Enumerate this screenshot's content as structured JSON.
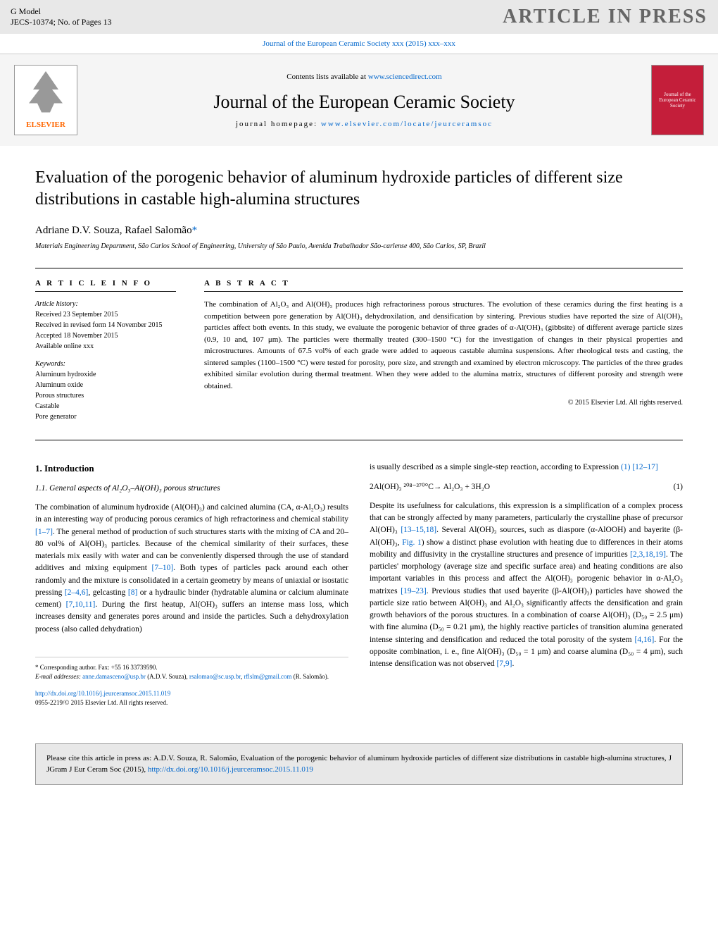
{
  "header": {
    "gmodel": "G Model",
    "jecs": "JECS-10374;   No. of Pages 13",
    "article_in_press": "ARTICLE IN PRESS"
  },
  "journal_ref": "Journal of the European Ceramic Society xxx (2015) xxx–xxx",
  "banner": {
    "elsevier": "ELSEVIER",
    "contents": "Contents lists available at ",
    "sciencedirect": "www.sciencedirect.com",
    "journal_title": "Journal of the European Ceramic Society",
    "homepage_label": "journal homepage: ",
    "homepage_url": "www.elsevier.com/locate/jeurceramsoc",
    "cover_text": "Journal of the European Ceramic Society"
  },
  "article": {
    "title": "Evaluation of the porogenic behavior of aluminum hydroxide particles of different size distributions in castable high-alumina structures",
    "author1": "Adriane D.V. Souza",
    "author2": "Rafael Salomão",
    "asterisk": "*",
    "affiliation": "Materials Engineering Department, São Carlos School of Engineering, University of São Paulo, Avenida Trabalhador São-carlense 400, São Carlos, SP, Brazil"
  },
  "info": {
    "header": "A R T I C L E   I N F O",
    "history_label": "Article history:",
    "received": "Received 23 September 2015",
    "revised": "Received in revised form 14 November 2015",
    "accepted": "Accepted 18 November 2015",
    "online": "Available online xxx",
    "keywords_label": "Keywords:",
    "kw1": "Aluminum hydroxide",
    "kw2": "Aluminum oxide",
    "kw3": "Porous structures",
    "kw4": "Castable",
    "kw5": "Pore generator"
  },
  "abstract": {
    "header": "A B S T R A C T",
    "text": "The combination of Al₂O₃ and Al(OH)₃ produces high refractoriness porous structures. The evolution of these ceramics during the first heating is a competition between pore generation by Al(OH)₃ dehydroxilation, and densification by sintering. Previous studies have reported the size of Al(OH)₃ particles affect both events. In this study, we evaluate the porogenic behavior of three grades of α-Al(OH)₃ (gibbsite) of different average particle sizes (0.9, 10 and, 107 μm). The particles were thermally treated (300–1500 °C) for the investigation of changes in their physical properties and microstructures. Amounts of 67.5 vol% of each grade were added to aqueous castable alumina suspensions. After rheological tests and casting, the sintered samples (1100–1500 °C) were tested for porosity, pore size, and strength and examined by electron microscopy. The particles of the three grades exhibited similar evolution during thermal treatment. When they were added to the alumina matrix, structures of different porosity and strength were obtained.",
    "copyright": "© 2015 Elsevier Ltd. All rights reserved."
  },
  "body": {
    "section1": "1.  Introduction",
    "subsection11": "1.1.  General aspects of Al₂O₃–Al(OH)₃ porous structures",
    "para1a": "The combination of aluminum hydroxide (Al(OH)₃) and calcined alumina (CA, α-Al₂O₃) results in an interesting way of producing porous ceramics of high refractoriness and chemical stability ",
    "ref1": "[1–7]",
    "para1b": ". The general method of production of such structures starts with the mixing of CA and 20–80 vol% of Al(OH)₃ particles. Because of the chemical similarity of their surfaces, these materials mix easily with water and can be conveniently dispersed through the use of standard additives and mixing equipment ",
    "ref2": "[7–10]",
    "para1c": ". Both types of particles pack around each other randomly and the mixture is consolidated in a certain geometry by means of uniaxial or isostatic pressing ",
    "ref3": "[2–4,6]",
    "para1d": ", gelcasting ",
    "ref4": "[8]",
    "para1e": " or a hydraulic binder (hydratable alumina or calcium aluminate cement) ",
    "ref5": "[7,10,11]",
    "para1f": ". During the first heatup, Al(OH)₃ suffers an intense mass loss, which increases density and generates pores around and inside the particles. Such a dehydroxylation process (also called dehydration)",
    "para2a": "is usually described as a simple single-step reaction, according to Expression ",
    "ref6": "(1) [12–17]",
    "equation": "2Al(OH)₃ ²⁰⁸⁻³⁷⁰°C→ Al₂O₃ + 3H₂O",
    "eq_num": "(1)",
    "para3a": "Despite its usefulness for calculations, this expression is a simplification of a complex process that can be strongly affected by many parameters, particularly the crystalline phase of precursor Al(OH)₃ ",
    "ref7": "[13–15,18]",
    "para3b": ". Several Al(OH)₃ sources, such as diaspore (α-AlOOH) and bayerite (β-Al(OH)₃, ",
    "ref8": "Fig. 1",
    "para3c": ") show a distinct phase evolution with heating due to differences in their atoms mobility and diffusivity in the crystalline structures and presence of impurities ",
    "ref9": "[2,3,18,19]",
    "para3d": ". The particles' morphology (average size and specific surface area) and heating conditions are also important variables in this process and affect the Al(OH)₃ porogenic behavior in α-Al₂O₃ matrixes ",
    "ref10": "[19–23]",
    "para3e": ". Previous studies that used bayerite (β-Al(OH)₃) particles have showed the particle size ratio between Al(OH)₃ and Al₂O₃ significantly affects the densification and grain growth behaviors of the porous structures. In a combination of coarse Al(OH)₃ (D₅₀ = 2.5 μm) with fine alumina (D₅₀ = 0.21 μm), the highly reactive particles of transition alumina generated intense sintering and densification and reduced the total porosity of the system ",
    "ref11": "[4,16]",
    "para3f": ". For the opposite combination, i. e., fine Al(OH)₃ (D₅₀ = 1 μm) and coarse alumina (D₅₀ = 4 μm), such intense densification was not observed ",
    "ref12": "[7,9]",
    "para3g": "."
  },
  "footnotes": {
    "corr": "* Corresponding author. Fax: +55 16 33739590.",
    "email_label": "E-mail addresses: ",
    "email1": "anne.damasceno@usp.br",
    "email1_name": " (A.D.V. Souza), ",
    "email2": "rsalomao@sc.usp.br",
    "email2_sep": ", ",
    "email3": "rflslm@gmail.com",
    "email3_name": " (R. Salomão).",
    "doi": "http://dx.doi.org/10.1016/j.jeurceramsoc.2015.11.019",
    "issn": "0955-2219/© 2015 Elsevier Ltd. All rights reserved."
  },
  "citation": {
    "text": "Please cite this article in press as: A.D.V. Souza, R. Salomão, Evaluation of the porogenic behavior of aluminum hydroxide particles of different size distributions in castable high-alumina structures, J JGram J Eur Ceram Soc (2015), ",
    "doi_link": "http://dx.doi.org/10.1016/j.jeurceramsoc.2015.11.019"
  },
  "colors": {
    "link": "#0066cc",
    "header_bg": "#e8e8e8",
    "banner_bg": "#f5f5f5",
    "elsevier_orange": "#ff6600",
    "journal_red": "#c41e3a"
  }
}
